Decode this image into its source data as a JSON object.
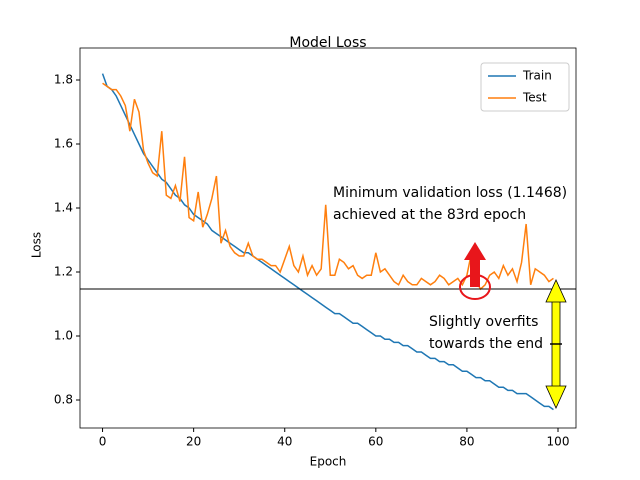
{
  "chart_data": {
    "type": "line",
    "title": "Model Loss",
    "x_label": "Epoch",
    "y_label": "Loss",
    "x": [
      0,
      1,
      2,
      3,
      4,
      5,
      6,
      7,
      8,
      9,
      10,
      11,
      12,
      13,
      14,
      15,
      16,
      17,
      18,
      19,
      20,
      21,
      22,
      23,
      24,
      25,
      26,
      27,
      28,
      29,
      30,
      31,
      32,
      33,
      34,
      35,
      36,
      37,
      38,
      39,
      40,
      41,
      42,
      43,
      44,
      45,
      46,
      47,
      48,
      49,
      50,
      51,
      52,
      53,
      54,
      55,
      56,
      57,
      58,
      59,
      60,
      61,
      62,
      63,
      64,
      65,
      66,
      67,
      68,
      69,
      70,
      71,
      72,
      73,
      74,
      75,
      76,
      77,
      78,
      79,
      80,
      81,
      82,
      83,
      84,
      85,
      86,
      87,
      88,
      89,
      90,
      91,
      92,
      93,
      94,
      95,
      96,
      97,
      98,
      99
    ],
    "series": [
      {
        "name": "Train",
        "color": "#1f77b4",
        "values": [
          1.82,
          1.78,
          1.77,
          1.75,
          1.72,
          1.69,
          1.66,
          1.63,
          1.6,
          1.57,
          1.55,
          1.53,
          1.51,
          1.49,
          1.48,
          1.46,
          1.44,
          1.43,
          1.41,
          1.4,
          1.38,
          1.37,
          1.36,
          1.35,
          1.33,
          1.32,
          1.31,
          1.3,
          1.29,
          1.28,
          1.27,
          1.26,
          1.26,
          1.25,
          1.24,
          1.23,
          1.22,
          1.21,
          1.2,
          1.19,
          1.18,
          1.17,
          1.16,
          1.15,
          1.14,
          1.13,
          1.12,
          1.11,
          1.1,
          1.09,
          1.08,
          1.07,
          1.07,
          1.06,
          1.05,
          1.04,
          1.04,
          1.03,
          1.02,
          1.01,
          1.0,
          1.0,
          0.99,
          0.99,
          0.98,
          0.98,
          0.97,
          0.97,
          0.96,
          0.95,
          0.95,
          0.94,
          0.93,
          0.93,
          0.92,
          0.92,
          0.91,
          0.91,
          0.9,
          0.89,
          0.89,
          0.88,
          0.87,
          0.87,
          0.86,
          0.86,
          0.85,
          0.84,
          0.84,
          0.83,
          0.83,
          0.82,
          0.82,
          0.82,
          0.81,
          0.8,
          0.79,
          0.78,
          0.78,
          0.77
        ]
      },
      {
        "name": "Test",
        "color": "#ff7f0e",
        "values": [
          1.79,
          1.78,
          1.77,
          1.77,
          1.75,
          1.72,
          1.64,
          1.74,
          1.7,
          1.58,
          1.54,
          1.51,
          1.5,
          1.64,
          1.44,
          1.43,
          1.47,
          1.42,
          1.56,
          1.37,
          1.36,
          1.45,
          1.34,
          1.38,
          1.43,
          1.5,
          1.29,
          1.33,
          1.28,
          1.26,
          1.25,
          1.25,
          1.29,
          1.25,
          1.24,
          1.24,
          1.23,
          1.22,
          1.22,
          1.2,
          1.24,
          1.28,
          1.22,
          1.2,
          1.25,
          1.19,
          1.22,
          1.19,
          1.21,
          1.41,
          1.19,
          1.19,
          1.24,
          1.23,
          1.21,
          1.22,
          1.19,
          1.18,
          1.19,
          1.19,
          1.26,
          1.2,
          1.21,
          1.19,
          1.17,
          1.16,
          1.19,
          1.17,
          1.16,
          1.16,
          1.18,
          1.17,
          1.16,
          1.17,
          1.19,
          1.18,
          1.16,
          1.17,
          1.18,
          1.16,
          1.19,
          1.26,
          1.17,
          1.1468,
          1.16,
          1.19,
          1.2,
          1.18,
          1.22,
          1.19,
          1.21,
          1.17,
          1.23,
          1.35,
          1.16,
          1.21,
          1.2,
          1.19,
          1.17,
          1.18
        ]
      }
    ],
    "xlim": [
      -4.95,
      103.95
    ],
    "xticks": [
      0,
      20,
      40,
      60,
      80,
      100
    ],
    "ylim": [
      0.7125,
      1.9
    ],
    "yticks": [
      0.8,
      {
        "value": 1,
        "label": "1.0"
      },
      1.2,
      1.4,
      1.6,
      1.8
    ],
    "hline": 1.1468,
    "grid": false,
    "legend": "upper right",
    "annotations": [
      "Minimum validation loss (1.1468)",
      "achieved at the 83rd epoch",
      "Slightly overfits",
      "towards the end"
    ]
  }
}
